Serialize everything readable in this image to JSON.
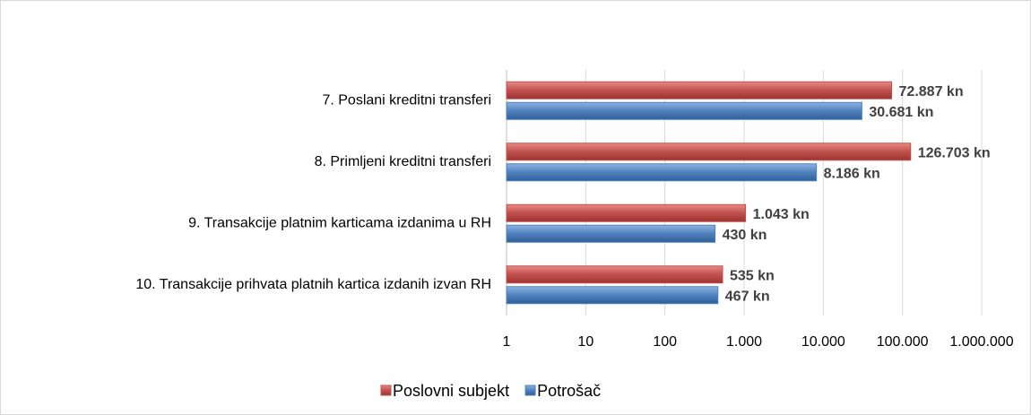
{
  "chart_data": {
    "type": "bar",
    "orientation": "horizontal",
    "log_scale": true,
    "grid": true,
    "categories": [
      "7. Poslani kreditni transferi",
      "8. Primljeni kreditni transferi",
      "9. Transakcije platnim karticama izdanima u RH",
      "10. Transakcije prihvata platnih kartica izdanih izvan RH"
    ],
    "series": [
      {
        "name": "Poslovni subjekt",
        "color": "#c0504d",
        "values": [
          72887,
          126703,
          1043,
          535
        ],
        "value_labels": [
          "72.887 kn",
          "126.703 kn",
          "1.043 kn",
          "535 kn"
        ]
      },
      {
        "name": "Potrošač",
        "color": "#4f81bd",
        "values": [
          30681,
          8186,
          430,
          467
        ],
        "value_labels": [
          "30.681 kn",
          "8.186 kn",
          "430 kn",
          "467 kn"
        ]
      }
    ],
    "xlim": [
      1,
      1000000
    ],
    "xticks": [
      1,
      10,
      100,
      {
        "value": 1000,
        "label": "1.000"
      },
      {
        "value": 10000,
        "label": "10.000"
      },
      {
        "value": 100000,
        "label": "100.000"
      },
      {
        "value": 1000000,
        "label": "1.000.000"
      }
    ],
    "legend": "bottom"
  }
}
